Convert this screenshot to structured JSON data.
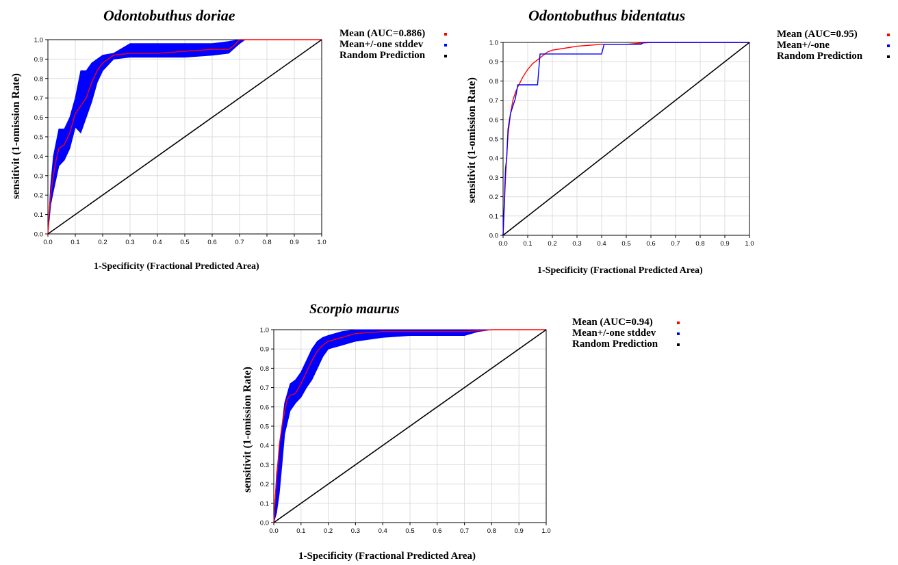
{
  "axis_x_label": "1-Specificity (Fractional Predicted Area)",
  "axis_y_label": "sensitivit (1-omission Rate)",
  "colors": {
    "mean": "#ff0000",
    "stddev": "#0000ff",
    "random": "#000000",
    "grid": "#dcdcdc"
  },
  "chart_data": [
    {
      "type": "line",
      "title": "Odontobuthus doriae",
      "xlabel": "1-Specificity (Fractional Predicted Area)",
      "ylabel": "sensitivit (1-omission Rate)",
      "xlim": [
        0,
        1
      ],
      "ylim": [
        0,
        1
      ],
      "xticks": [
        "0.0",
        "0.1",
        "0.2",
        "0.3",
        "0.4",
        "0.5",
        "0.6",
        "0.7",
        "0.8",
        "0.9",
        "1.0"
      ],
      "yticks": [
        "0.0",
        "0.1",
        "0.2",
        "0.3",
        "0.4",
        "0.5",
        "0.6",
        "0.7",
        "0.8",
        "0.9",
        "1.0"
      ],
      "grid": true,
      "legend_position": "outside-right",
      "legend": [
        "Mean (AUC=0.886)",
        "Mean+/-one stddev",
        "Random Prediction"
      ],
      "series": [
        {
          "name": "Mean (AUC=0.886)",
          "color": "#ff0000",
          "x": [
            0,
            0.002,
            0.005,
            0.01,
            0.015,
            0.02,
            0.03,
            0.04,
            0.05,
            0.06,
            0.08,
            0.1,
            0.12,
            0.14,
            0.16,
            0.18,
            0.2,
            0.22,
            0.24,
            0.3,
            0.4,
            0.5,
            0.6,
            0.66,
            0.68,
            0.7,
            0.8,
            1.0
          ],
          "y": [
            0,
            0.05,
            0.12,
            0.2,
            0.25,
            0.3,
            0.38,
            0.44,
            0.45,
            0.46,
            0.52,
            0.62,
            0.66,
            0.7,
            0.78,
            0.84,
            0.88,
            0.9,
            0.92,
            0.93,
            0.93,
            0.94,
            0.95,
            0.95,
            0.97,
            1.0,
            1.0,
            1.0
          ]
        },
        {
          "name": "Mean+/-one stddev",
          "color": "#0000ff",
          "type": "band",
          "x": [
            0,
            0.01,
            0.02,
            0.04,
            0.06,
            0.08,
            0.1,
            0.12,
            0.14,
            0.16,
            0.18,
            0.2,
            0.24,
            0.3,
            0.4,
            0.5,
            0.6,
            0.66,
            0.7,
            0.72,
            1.0
          ],
          "upper": [
            0,
            0.25,
            0.4,
            0.54,
            0.54,
            0.6,
            0.7,
            0.84,
            0.84,
            0.88,
            0.9,
            0.92,
            0.93,
            0.98,
            0.98,
            0.98,
            0.98,
            0.99,
            1.0,
            1.0,
            1.0
          ],
          "lower": [
            0,
            0.15,
            0.22,
            0.35,
            0.38,
            0.44,
            0.55,
            0.52,
            0.6,
            0.68,
            0.78,
            0.84,
            0.9,
            0.91,
            0.91,
            0.91,
            0.92,
            0.93,
            0.98,
            1.0,
            1.0
          ]
        },
        {
          "name": "Random Prediction",
          "color": "#000000",
          "x": [
            0,
            1
          ],
          "y": [
            0,
            1
          ]
        }
      ]
    },
    {
      "type": "line",
      "title": "Odontobuthus bidentatus",
      "xlabel": "1-Specificity (Fractional Predicted Area)",
      "ylabel": "sensitivit (1-omission Rate)",
      "xlim": [
        0,
        1
      ],
      "ylim": [
        0,
        1
      ],
      "xticks": [
        "0.0",
        "0.1",
        "0.2",
        "0.3",
        "0.4",
        "0.5",
        "0.6",
        "0.7",
        "0.8",
        "0.9",
        "1.0"
      ],
      "yticks": [
        "0.0",
        "0.1",
        "0.2",
        "0.3",
        "0.4",
        "0.5",
        "0.6",
        "0.7",
        "0.8",
        "0.9",
        "1.0"
      ],
      "grid": true,
      "legend_position": "outside-right",
      "legend": [
        "Mean (AUC=0.95)",
        "Mean+/-one",
        "Random Prediction"
      ],
      "series": [
        {
          "name": "Mean (AUC=0.95)",
          "color": "#ff0000",
          "x": [
            0,
            0.005,
            0.01,
            0.015,
            0.02,
            0.03,
            0.04,
            0.05,
            0.06,
            0.08,
            0.1,
            0.12,
            0.14,
            0.16,
            0.18,
            0.2,
            0.25,
            0.3,
            0.4,
            0.5,
            0.6,
            0.8,
            1.0
          ],
          "y": [
            0,
            0.15,
            0.3,
            0.42,
            0.52,
            0.63,
            0.7,
            0.74,
            0.77,
            0.82,
            0.86,
            0.89,
            0.91,
            0.93,
            0.95,
            0.96,
            0.97,
            0.98,
            0.99,
            0.99,
            1.0,
            1.0,
            1.0
          ]
        },
        {
          "name": "Mean+/-one",
          "color": "#0000ff",
          "x": [
            0,
            0.005,
            0.01,
            0.015,
            0.02,
            0.03,
            0.05,
            0.06,
            0.1,
            0.14,
            0.15,
            0.2,
            0.25,
            0.3,
            0.4,
            0.41,
            0.56,
            0.57,
            0.6,
            1.0
          ],
          "y": [
            0,
            0.17,
            0.35,
            0.4,
            0.55,
            0.63,
            0.71,
            0.78,
            0.78,
            0.78,
            0.94,
            0.94,
            0.94,
            0.94,
            0.94,
            0.99,
            0.99,
            1.0,
            1.0,
            1.0
          ]
        },
        {
          "name": "Random Prediction",
          "color": "#000000",
          "x": [
            0,
            1
          ],
          "y": [
            0,
            1
          ]
        }
      ]
    },
    {
      "type": "line",
      "title": "Scorpio maurus",
      "xlabel": "1-Specificity (Fractional Predicted Area)",
      "ylabel": "sensitivit (1-omission Rate)",
      "xlim": [
        0,
        1
      ],
      "ylim": [
        0,
        1
      ],
      "xticks": [
        "0.0",
        "0.1",
        "0.2",
        "0.3",
        "0.4",
        "0.5",
        "0.6",
        "0.7",
        "0.8",
        "0.9",
        "1.0"
      ],
      "yticks": [
        "0.0",
        "0.1",
        "0.2",
        "0.3",
        "0.4",
        "0.5",
        "0.6",
        "0.7",
        "0.8",
        "0.9",
        "1.0"
      ],
      "grid": true,
      "legend_position": "outside-right",
      "legend": [
        "Mean (AUC=0.94)",
        "Mean+/-one stddev",
        "Random Prediction"
      ],
      "series": [
        {
          "name": "Mean (AUC=0.94)",
          "color": "#ff0000",
          "x": [
            0,
            0.005,
            0.01,
            0.015,
            0.02,
            0.03,
            0.04,
            0.05,
            0.06,
            0.08,
            0.1,
            0.12,
            0.14,
            0.16,
            0.18,
            0.2,
            0.25,
            0.3,
            0.4,
            0.5,
            0.6,
            0.7,
            0.8,
            1.0
          ],
          "y": [
            0,
            0.12,
            0.22,
            0.3,
            0.4,
            0.5,
            0.58,
            0.64,
            0.66,
            0.67,
            0.72,
            0.78,
            0.84,
            0.89,
            0.92,
            0.94,
            0.96,
            0.98,
            0.99,
            0.99,
            0.99,
            0.99,
            1.0,
            1.0
          ]
        },
        {
          "name": "Mean+/-one stddev",
          "color": "#0000ff",
          "type": "band",
          "x": [
            0,
            0.01,
            0.02,
            0.03,
            0.04,
            0.06,
            0.08,
            0.1,
            0.12,
            0.14,
            0.16,
            0.18,
            0.2,
            0.25,
            0.3,
            0.4,
            0.5,
            0.6,
            0.7,
            0.75,
            0.8,
            1.0
          ],
          "upper": [
            0,
            0.25,
            0.38,
            0.5,
            0.62,
            0.72,
            0.74,
            0.78,
            0.84,
            0.9,
            0.94,
            0.96,
            0.97,
            0.99,
            1.0,
            1.0,
            1.0,
            1.0,
            1.0,
            1.0,
            1.0,
            1.0
          ],
          "lower": [
            0,
            0.05,
            0.15,
            0.3,
            0.46,
            0.58,
            0.62,
            0.65,
            0.7,
            0.74,
            0.8,
            0.86,
            0.9,
            0.92,
            0.94,
            0.96,
            0.97,
            0.97,
            0.97,
            0.99,
            1.0,
            1.0
          ]
        },
        {
          "name": "Random Prediction",
          "color": "#000000",
          "x": [
            0,
            1
          ],
          "y": [
            0,
            1
          ]
        }
      ]
    }
  ]
}
